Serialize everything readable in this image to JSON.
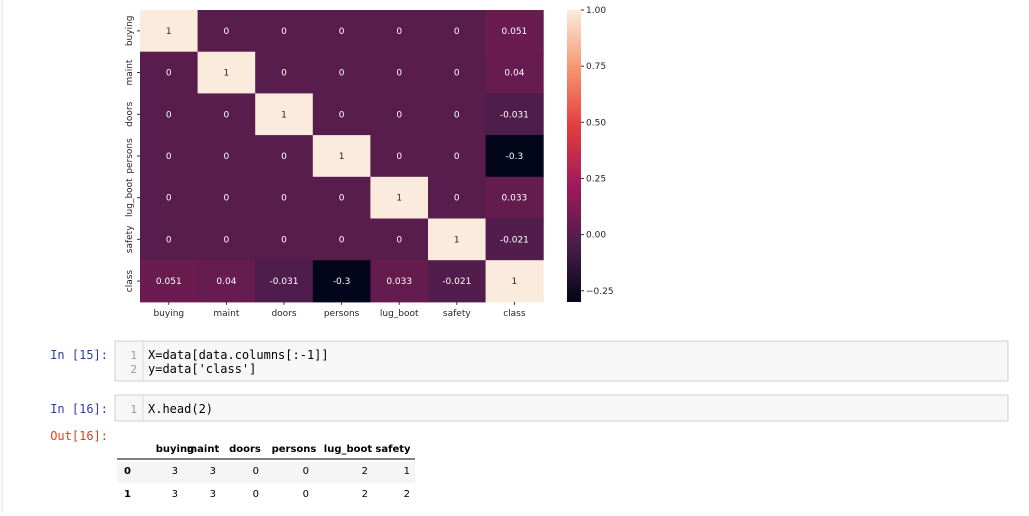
{
  "chart_data": {
    "type": "heatmap",
    "categories": [
      "buying",
      "maint",
      "doors",
      "persons",
      "lug_boot",
      "safety",
      "class"
    ],
    "values": [
      [
        1,
        0,
        0,
        0,
        0,
        0,
        0.051
      ],
      [
        0,
        1,
        0,
        0,
        0,
        0,
        0.04
      ],
      [
        0,
        0,
        1,
        0,
        0,
        0,
        -0.031
      ],
      [
        0,
        0,
        0,
        1,
        0,
        0,
        -0.3
      ],
      [
        0,
        0,
        0,
        0,
        1,
        0,
        0.033
      ],
      [
        0,
        0,
        0,
        0,
        0,
        1,
        -0.021
      ],
      [
        0.051,
        0.04,
        -0.031,
        -0.3,
        0.033,
        -0.021,
        1
      ]
    ],
    "colormap": "rocket",
    "zlim": [
      -0.3,
      1
    ],
    "zticks": [
      {
        "value": 1,
        "label": "1.00"
      },
      {
        "value": 0.75,
        "label": "0.75"
      },
      {
        "value": 0.5,
        "label": "0.50"
      },
      {
        "value": 0.25,
        "label": "0.25"
      },
      {
        "value": 0,
        "label": "0.00"
      },
      {
        "value": -0.25,
        "label": "−0.25"
      }
    ]
  },
  "cells": [
    {
      "prompt": "In [15]:",
      "lines": [
        {
          "number": 1,
          "code": "X=data[data.columns[:-1]]"
        },
        {
          "number": 2,
          "code": "y=data['class']"
        }
      ]
    },
    {
      "prompt": "In [16]:",
      "lines": [
        {
          "number": 1,
          "code": "X.head(2)"
        }
      ]
    }
  ],
  "output": {
    "prompt": "Out[16]:",
    "table": {
      "columns": [
        "buying",
        "maint",
        "doors",
        "persons",
        "lug_boot",
        "safety"
      ],
      "rows": [
        {
          "index": 0,
          "values": [
            3,
            3,
            0,
            0,
            2,
            1
          ]
        },
        {
          "index": 1,
          "values": [
            3,
            3,
            0,
            0,
            2,
            2
          ]
        }
      ]
    }
  }
}
